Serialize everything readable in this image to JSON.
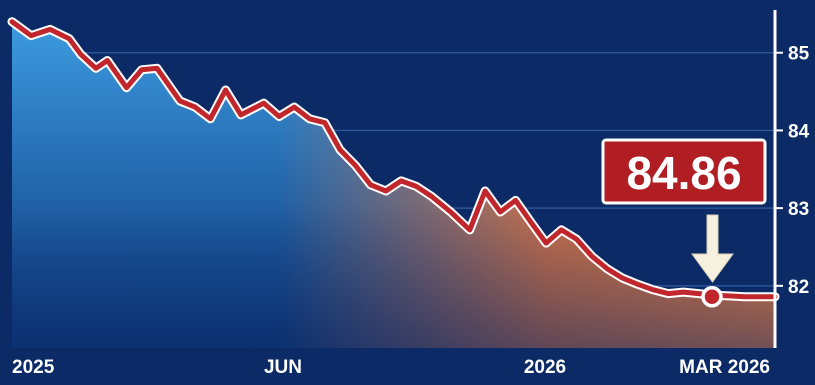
{
  "chart_data": {
    "type": "area",
    "x_tick_labels": [
      "2025",
      "JUN",
      "2026",
      "MAR 2026"
    ],
    "y_tick_labels": [
      "85",
      "84",
      "83",
      "82"
    ],
    "y_ticks": [
      85,
      84,
      83,
      82
    ],
    "ylim": [
      81.2,
      85.55
    ],
    "xlim": [
      0,
      100
    ],
    "grid": true,
    "series": [
      {
        "x": [
          0,
          2.5,
          5,
          7.5,
          9,
          11,
          12.5,
          15,
          17,
          19,
          22,
          24,
          26,
          28,
          30,
          33,
          35,
          37,
          39,
          41,
          43,
          45,
          47,
          49,
          51,
          53,
          55,
          57.5,
          60,
          62,
          64,
          66,
          68,
          70,
          72,
          74,
          76,
          78,
          80,
          82,
          84,
          86,
          88,
          90,
          92,
          94,
          96,
          98,
          100
        ],
        "y": [
          85.4,
          85.22,
          85.3,
          85.18,
          84.98,
          84.8,
          84.9,
          84.55,
          84.78,
          84.8,
          84.38,
          84.3,
          84.15,
          84.52,
          84.2,
          84.35,
          84.18,
          84.3,
          84.15,
          84.1,
          83.75,
          83.55,
          83.3,
          83.22,
          83.35,
          83.28,
          83.15,
          82.95,
          82.72,
          83.22,
          82.95,
          83.1,
          82.82,
          82.55,
          82.72,
          82.6,
          82.38,
          82.22,
          82.1,
          82.02,
          81.95,
          81.9,
          81.92,
          81.9,
          81.88,
          81.87,
          81.86,
          81.86,
          81.86
        ]
      }
    ],
    "callout": {
      "label": "84.86"
    }
  },
  "colors": {
    "background": "#0c2a66",
    "line": "#c0262c",
    "line_outline": "#ffffff",
    "fill_top": "#2f8fd6",
    "fill_right": "#e8743a",
    "callout_bg": "#b01e24"
  }
}
